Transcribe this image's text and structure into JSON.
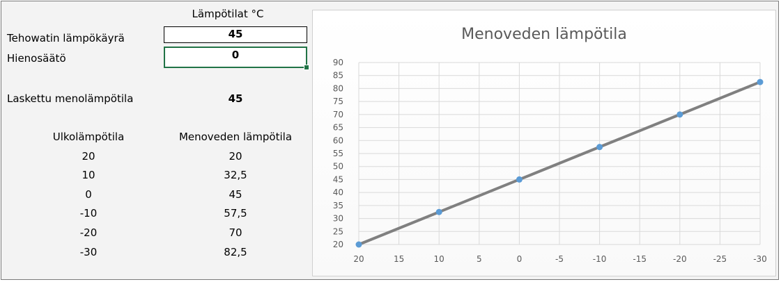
{
  "header": {
    "temperatures_label": "Lämpötilat °C"
  },
  "inputs": {
    "curve_label": "Tehowatin lämpökäyrä",
    "curve_value": "45",
    "fine_label": "Hienosäätö",
    "fine_value": "0"
  },
  "calculated": {
    "label": "Laskettu menolämpötila",
    "value": "45"
  },
  "table": {
    "headers": [
      "Ulkolämpötila",
      "Menoveden lämpötila"
    ],
    "rows": [
      [
        "20",
        "20"
      ],
      [
        "10",
        "32,5"
      ],
      [
        "0",
        "45"
      ],
      [
        "-10",
        "57,5"
      ],
      [
        "-20",
        "70"
      ],
      [
        "-30",
        "82,5"
      ]
    ]
  },
  "chart_data": {
    "type": "line",
    "title": "Menoveden lämpötila",
    "x": [
      20,
      10,
      0,
      -10,
      -20,
      -30
    ],
    "values": [
      20,
      32.5,
      45,
      57.5,
      70,
      82.5
    ],
    "x_ticks": [
      "20",
      "15",
      "10",
      "5",
      "0",
      "-5",
      "-10",
      "-15",
      "-20",
      "-25",
      "-30"
    ],
    "y_ticks": [
      "20",
      "25",
      "30",
      "35",
      "40",
      "45",
      "50",
      "55",
      "60",
      "65",
      "70",
      "75",
      "80",
      "85",
      "90"
    ],
    "xlim": [
      20,
      -30
    ],
    "ylim": [
      20,
      90
    ],
    "grid": true,
    "colors": {
      "line": "#808080",
      "marker": "#5b9bd5",
      "grid": "#d9d9d9",
      "axis_text": "#595959"
    }
  }
}
